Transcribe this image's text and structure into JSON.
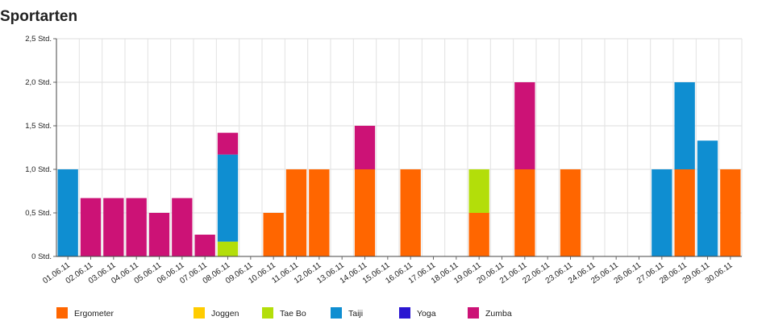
{
  "chart_data": {
    "type": "bar",
    "stacked": true,
    "title": "Sportarten",
    "xlabel": "",
    "ylabel": "",
    "ylim": [
      0,
      2.5
    ],
    "yticks": [
      "0 Std.",
      "0,5 Std.",
      "1,0 Std.",
      "1,5 Std.",
      "2,0 Std.",
      "2,5 Std."
    ],
    "grid": true,
    "legend_position": "bottom",
    "categories": [
      "01.06.11",
      "02.06.11",
      "03.06.11",
      "04.06.11",
      "05.06.11",
      "06.06.11",
      "07.06.11",
      "08.06.11",
      "09.06.11",
      "10.06.11",
      "11.06.11",
      "12.06.11",
      "13.06.11",
      "14.06.11",
      "15.06.11",
      "16.06.11",
      "17.06.11",
      "18.06.11",
      "19.06.11",
      "20.06.11",
      "21.06.11",
      "22.06.11",
      "23.06.11",
      "24.06.11",
      "25.06.11",
      "26.06.11",
      "27.06.11",
      "28.06.11",
      "29.06.11",
      "30.06.11"
    ],
    "series": [
      {
        "name": "Ergometer",
        "color": "#ff6600",
        "values": [
          0,
          0,
          0,
          0,
          0,
          0,
          0,
          0,
          0,
          0.5,
          1,
          1,
          0,
          1,
          0,
          1,
          0,
          0,
          0.5,
          0,
          1,
          0,
          1,
          0,
          0,
          0,
          0,
          1,
          0,
          1
        ]
      },
      {
        "name": "Joggen",
        "color": "#ffcc00",
        "values": [
          0,
          0,
          0,
          0,
          0,
          0,
          0,
          0,
          0,
          0,
          0,
          0,
          0,
          0,
          0,
          0,
          0,
          0,
          0,
          0,
          0,
          0,
          0,
          0,
          0,
          0,
          0,
          0,
          0,
          0
        ]
      },
      {
        "name": "Tae Bo",
        "color": "#b3de0a",
        "values": [
          0,
          0,
          0,
          0,
          0,
          0,
          0,
          0.17,
          0,
          0,
          0,
          0,
          0,
          0,
          0,
          0,
          0,
          0,
          0.5,
          0,
          0,
          0,
          0,
          0,
          0,
          0,
          0,
          0,
          0,
          0
        ]
      },
      {
        "name": "Taiji",
        "color": "#0f8ed1",
        "values": [
          1,
          0,
          0,
          0,
          0,
          0,
          0,
          1,
          0,
          0,
          0,
          0,
          0,
          0,
          0,
          0,
          0,
          0,
          0,
          0,
          0,
          0,
          0,
          0,
          0,
          0,
          1,
          1,
          1.33,
          0
        ]
      },
      {
        "name": "Yoga",
        "color": "#2b16d1",
        "values": [
          0,
          0,
          0,
          0,
          0,
          0,
          0,
          0,
          0,
          0,
          0,
          0,
          0,
          0,
          0,
          0,
          0,
          0,
          0,
          0,
          0,
          0,
          0,
          0,
          0,
          0,
          0,
          0,
          0,
          0
        ]
      },
      {
        "name": "Zumba",
        "color": "#cc1276",
        "values": [
          0,
          0.67,
          0.67,
          0.67,
          0.5,
          0.67,
          0.25,
          0.25,
          0,
          0,
          0,
          0,
          0,
          0.5,
          0,
          0,
          0,
          0,
          0,
          0,
          1,
          0,
          0,
          0,
          0,
          0,
          0,
          0,
          0,
          0
        ]
      }
    ]
  }
}
